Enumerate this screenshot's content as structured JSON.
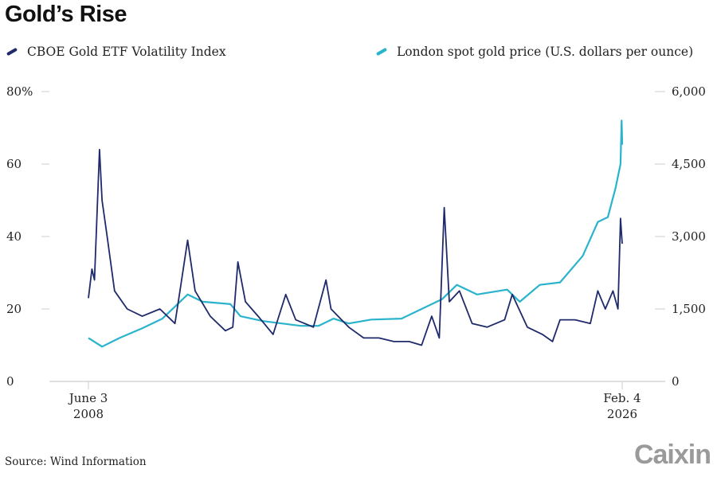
{
  "chart_data": {
    "type": "line",
    "title": "Gold’s Rise",
    "source": "Source: Wind Information",
    "logo": "Caixin",
    "x_range": [
      "2008-06-03",
      "2026-02-04"
    ],
    "x_ticks": [
      {
        "date": "2008-06-03",
        "line1": "June 3",
        "line2": "2008"
      },
      {
        "date": "2026-02-04",
        "line1": "Feb. 4",
        "line2": "2026"
      }
    ],
    "y_left": {
      "range": [
        0,
        80
      ],
      "ticks": [
        "0",
        "20",
        "40",
        "60",
        "80%"
      ],
      "values": [
        0,
        20,
        40,
        60,
        80
      ]
    },
    "y_right": {
      "range": [
        0,
        6000
      ],
      "ticks": [
        "0",
        "1,500",
        "3,000",
        "4,500",
        "6,000"
      ],
      "values": [
        0,
        1500,
        3000,
        4500,
        6000
      ]
    },
    "grid": false,
    "legend_placement": "top",
    "series": [
      {
        "name": "CBOE Gold ETF Volatility Index",
        "axis": "left",
        "color": "#1f2a6b",
        "points": [
          [
            "2008-06-03",
            23
          ],
          [
            "2008-07",
            31
          ],
          [
            "2008-08",
            28
          ],
          [
            "2008-10",
            64
          ],
          [
            "2008-11",
            50
          ],
          [
            "2009-01",
            40
          ],
          [
            "2009-04",
            25
          ],
          [
            "2009-09",
            20
          ],
          [
            "2010-03",
            18
          ],
          [
            "2010-10",
            20
          ],
          [
            "2011-04",
            16
          ],
          [
            "2011-06",
            25
          ],
          [
            "2011-09",
            39
          ],
          [
            "2011-12",
            25
          ],
          [
            "2012-06",
            18
          ],
          [
            "2012-12",
            14
          ],
          [
            "2013-03",
            15
          ],
          [
            "2013-05",
            33
          ],
          [
            "2013-08",
            22
          ],
          [
            "2014-01",
            18
          ],
          [
            "2014-07",
            13
          ],
          [
            "2014-12",
            24
          ],
          [
            "2015-04",
            17
          ],
          [
            "2015-11",
            15
          ],
          [
            "2016-04",
            28
          ],
          [
            "2016-06",
            20
          ],
          [
            "2017-01",
            15
          ],
          [
            "2017-07",
            12
          ],
          [
            "2018-01",
            12
          ],
          [
            "2018-07",
            11
          ],
          [
            "2019-01",
            11
          ],
          [
            "2019-06",
            10
          ],
          [
            "2019-10",
            18
          ],
          [
            "2020-01",
            12
          ],
          [
            "2020-03",
            48
          ],
          [
            "2020-05",
            22
          ],
          [
            "2020-09",
            25
          ],
          [
            "2021-02",
            16
          ],
          [
            "2021-08",
            15
          ],
          [
            "2022-03",
            17
          ],
          [
            "2022-06",
            24
          ],
          [
            "2022-12",
            15
          ],
          [
            "2023-06",
            13
          ],
          [
            "2023-10",
            11
          ],
          [
            "2024-01",
            17
          ],
          [
            "2024-07",
            17
          ],
          [
            "2025-01",
            16
          ],
          [
            "2025-04",
            25
          ],
          [
            "2025-07",
            20
          ],
          [
            "2025-10",
            25
          ],
          [
            "2025-12",
            20
          ],
          [
            "2026-01",
            45
          ],
          [
            "2026-02-04",
            38
          ]
        ]
      },
      {
        "name": "London spot gold price (U.S. dollars per ounce)",
        "axis": "right",
        "color": "#29b3cc",
        "points": [
          [
            "2008-06-03",
            900
          ],
          [
            "2008-11",
            720
          ],
          [
            "2009-06",
            900
          ],
          [
            "2010-03",
            1100
          ],
          [
            "2010-11",
            1300
          ],
          [
            "2011-09",
            1800
          ],
          [
            "2012-03",
            1650
          ],
          [
            "2013-02",
            1600
          ],
          [
            "2013-06",
            1350
          ],
          [
            "2014-03",
            1250
          ],
          [
            "2015-06",
            1150
          ],
          [
            "2016-01",
            1150
          ],
          [
            "2016-07",
            1300
          ],
          [
            "2017-01",
            1200
          ],
          [
            "2017-10",
            1280
          ],
          [
            "2018-10",
            1300
          ],
          [
            "2019-06",
            1500
          ],
          [
            "2020-02",
            1700
          ],
          [
            "2020-08",
            2000
          ],
          [
            "2021-04",
            1800
          ],
          [
            "2022-04",
            1900
          ],
          [
            "2022-09",
            1650
          ],
          [
            "2023-05",
            2000
          ],
          [
            "2024-01",
            2050
          ],
          [
            "2024-10",
            2600
          ],
          [
            "2025-04",
            3300
          ],
          [
            "2025-08",
            3400
          ],
          [
            "2025-11",
            4000
          ],
          [
            "2026-01",
            4500
          ],
          [
            "2026-01-28",
            5400
          ],
          [
            "2026-02-04",
            4900
          ]
        ]
      }
    ]
  }
}
